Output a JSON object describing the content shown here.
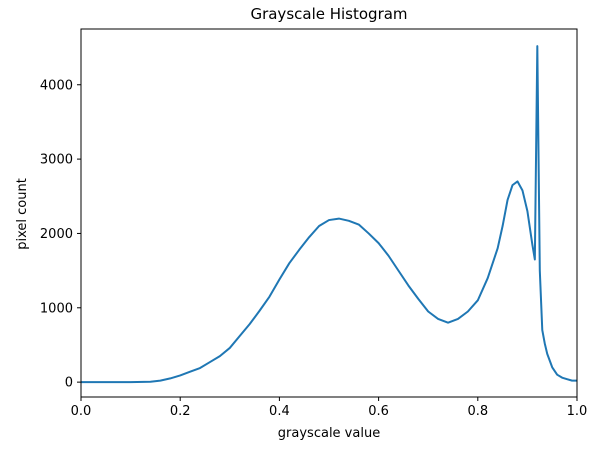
{
  "chart_data": {
    "type": "line",
    "title": "Grayscale Histogram",
    "xlabel": "grayscale value",
    "ylabel": "pixel count",
    "xlim": [
      0.0,
      1.0
    ],
    "ylim": [
      -200,
      4750
    ],
    "xticks": [
      0.0,
      0.2,
      0.4,
      0.6,
      0.8,
      1.0
    ],
    "xtick_labels": [
      "0.0",
      "0.2",
      "0.4",
      "0.6",
      "0.8",
      "1.0"
    ],
    "yticks": [
      0,
      1000,
      2000,
      3000,
      4000
    ],
    "ytick_labels": [
      "0",
      "1000",
      "2000",
      "3000",
      "4000"
    ],
    "grid": false,
    "legend": null,
    "colors": {
      "line": "#1f77b4",
      "axes": "#000000",
      "background": "#ffffff"
    },
    "series": [
      {
        "x": [
          0.0,
          0.05,
          0.1,
          0.14,
          0.16,
          0.18,
          0.2,
          0.22,
          0.24,
          0.26,
          0.28,
          0.3,
          0.32,
          0.34,
          0.36,
          0.38,
          0.4,
          0.42,
          0.44,
          0.46,
          0.48,
          0.5,
          0.52,
          0.54,
          0.56,
          0.58,
          0.6,
          0.62,
          0.64,
          0.66,
          0.68,
          0.7,
          0.72,
          0.74,
          0.76,
          0.78,
          0.8,
          0.82,
          0.84,
          0.85,
          0.86,
          0.87,
          0.88,
          0.89,
          0.9,
          0.91,
          0.915,
          0.92,
          0.925,
          0.93,
          0.935,
          0.94,
          0.95,
          0.96,
          0.97,
          0.98,
          0.99,
          1.0
        ],
        "y": [
          0,
          0,
          0,
          5,
          20,
          50,
          90,
          140,
          190,
          270,
          350,
          460,
          620,
          780,
          960,
          1150,
          1380,
          1600,
          1780,
          1950,
          2100,
          2180,
          2200,
          2170,
          2120,
          2000,
          1870,
          1700,
          1500,
          1300,
          1120,
          950,
          850,
          800,
          850,
          950,
          1100,
          1400,
          1800,
          2100,
          2450,
          2650,
          2700,
          2580,
          2300,
          1850,
          1650,
          4520,
          1500,
          700,
          520,
          380,
          200,
          100,
          60,
          40,
          20,
          20
        ]
      }
    ]
  }
}
